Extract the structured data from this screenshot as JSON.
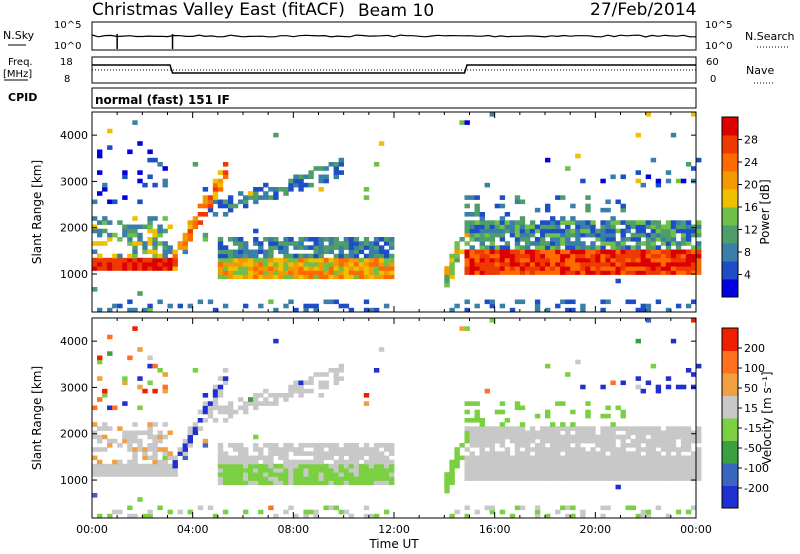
{
  "header": {
    "radar": "Christmas Valley East (fitACF)",
    "beam": "Beam 10",
    "date": "27/Feb/2014",
    "mode": "normal (fast) 151 IF"
  },
  "strips": {
    "nsky": {
      "label": "N.Sky",
      "ticks_left": [
        "10^5",
        "10^0"
      ],
      "ticks_right": [
        "10^5",
        "10^0"
      ],
      "right_label": "N.Search"
    },
    "freq": {
      "label_lines": [
        "Freq.",
        "[MHz]"
      ],
      "ticks_left": [
        "18",
        "8"
      ],
      "ticks_right": [
        "60",
        "0"
      ],
      "right_label": "Nave"
    },
    "cpid": {
      "label": "CPID"
    }
  },
  "chart_data": [
    {
      "type": "heatmap",
      "parameter": "power",
      "ylabel": "Slant Range [km]",
      "yticks": [
        1000,
        2000,
        3000,
        4000
      ],
      "ylim": [
        180,
        4500
      ],
      "xlim": [
        0,
        24
      ],
      "colorbar": {
        "label": "Power [dB]",
        "ticks": [
          "28",
          "24",
          "20",
          "16",
          "12",
          "8",
          "4"
        ],
        "colors": [
          "#0000e0",
          "#1d4ec8",
          "#3a7fa8",
          "#4f9e6a",
          "#6fbf48",
          "#f0c000",
          "#f29a00",
          "#ff6a00",
          "#ee3a00",
          "#dd0000"
        ]
      },
      "echo_bands": [
        {
          "name": "strong-near",
          "t0": 0,
          "t1": 3.2,
          "r0": 1050,
          "r1": 1400
        },
        {
          "name": "rising-arc",
          "t0": 3.1,
          "t1": 5.3,
          "r0": 1200,
          "r1": 3300
        },
        {
          "name": "mid-band",
          "t0": 5.0,
          "t1": 11.8,
          "r0": 900,
          "r1": 1900
        },
        {
          "name": "late-strong",
          "t0": 14.7,
          "t1": 24,
          "r0": 1000,
          "r1": 1500
        }
      ]
    },
    {
      "type": "heatmap",
      "parameter": "velocity",
      "ylabel": "Slant Range [km]",
      "xlabel": "Time UT",
      "xticks": [
        "00:00",
        "04:00",
        "08:00",
        "12:00",
        "16:00",
        "20:00",
        "00:00"
      ],
      "yticks": [
        1000,
        2000,
        3000,
        4000
      ],
      "ylim": [
        180,
        4500
      ],
      "xlim": [
        0,
        24
      ],
      "colorbar": {
        "label": "Velocity [m s⁻¹]",
        "ticks": [
          "200",
          "100",
          "50",
          "15",
          "-15",
          "-50",
          "-100",
          "-200"
        ],
        "colors": [
          "#2030d0",
          "#3a66c0",
          "#3aa040",
          "#7ad040",
          "#c8c8c8",
          "#f0a040",
          "#ff7020",
          "#ee2000"
        ]
      }
    }
  ]
}
